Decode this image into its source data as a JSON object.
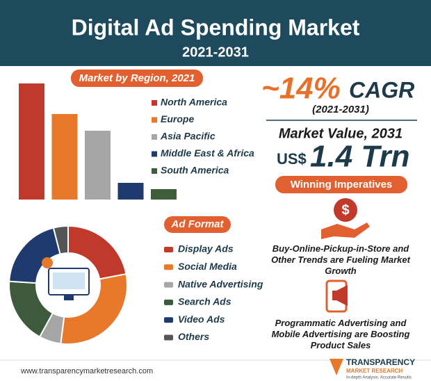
{
  "header": {
    "title": "Digital Ad Spending Market",
    "subtitle": "2021-2031"
  },
  "chart_data": [
    {
      "type": "bar",
      "title": "Market by Region, 2021",
      "categories": [
        "North America",
        "Europe",
        "Asia Pacific",
        "Middle East & Africa",
        "South America"
      ],
      "values": [
        167,
        123,
        99,
        24,
        15
      ],
      "colors": [
        "#c0392b",
        "#e8782a",
        "#a6a6a6",
        "#1f3a6e",
        "#3e5e3a"
      ]
    },
    {
      "type": "pie",
      "title": "Ad Format",
      "donut": true,
      "categories": [
        "Display Ads",
        "Social Media",
        "Native Advertising",
        "Search Ads",
        "Video Ads",
        "Others"
      ],
      "values": [
        22,
        30,
        6,
        18,
        20,
        4
      ],
      "colors": [
        "#c0392b",
        "#e8782a",
        "#a6a6a6",
        "#3d5a3c",
        "#1f3a6e",
        "#555555"
      ]
    }
  ],
  "cagr": {
    "value": "~14%",
    "label": "CAGR",
    "period": "(2021-2031)"
  },
  "market_value": {
    "label": "Market Value, 2031",
    "currency": "US$",
    "value": "1.4 Trn"
  },
  "winning_imperatives": {
    "title": "Winning Imperatives",
    "items": [
      "Buy-Online-Pickup-in-Store and Other Trends are Fueling Market Growth",
      "Programmatic Advertising and Mobile Advertising are Boosting Product Sales"
    ]
  },
  "footer": {
    "url": "www.transparencymarketresearch.com",
    "logo": {
      "name": "TRANSPARENCY",
      "sub": "MARKET RESEARCH",
      "tagline": "In-depth Analysis. Accurate Results"
    }
  }
}
